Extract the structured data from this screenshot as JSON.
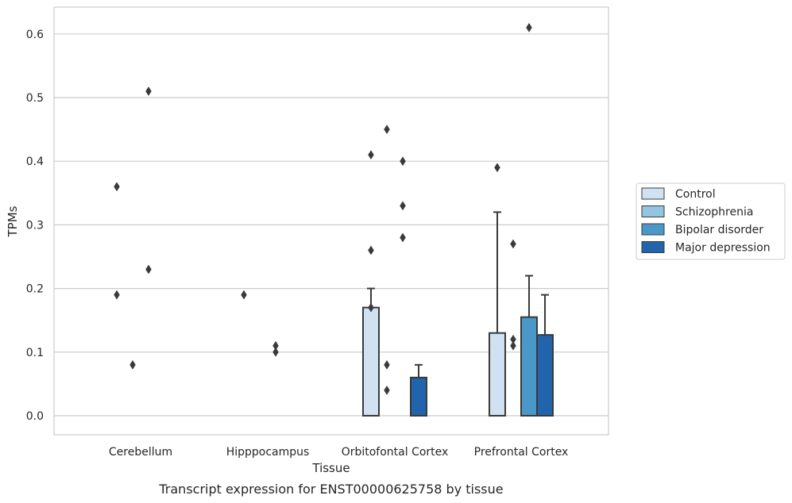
{
  "chart_data": {
    "type": "bar",
    "title": "",
    "caption": "Transcript expression for ENST00000625758 by tissue",
    "xlabel": "Tissue",
    "ylabel": "TPMs",
    "ylim": [
      -0.03,
      0.64
    ],
    "yticks": [
      0.0,
      0.1,
      0.2,
      0.3,
      0.4,
      0.5,
      0.6
    ],
    "ytick_labels": [
      "0.0",
      "0.1",
      "0.2",
      "0.3",
      "0.4",
      "0.5",
      "0.6"
    ],
    "grid": "horizontal",
    "legend_position": "right",
    "categories": [
      "Cerebellum",
      "Hipppocampus",
      "Orbitofontal Cortex",
      "Prefrontal Cortex"
    ],
    "series": [
      {
        "name": "Control",
        "color": "#d0e1f2",
        "values": [
          0.0,
          0.0,
          0.17,
          0.13
        ],
        "error_upper": [
          null,
          null,
          0.2,
          0.32
        ],
        "outliers": [
          [
            0.36,
            0.19
          ],
          [
            0.19
          ],
          [
            0.41,
            0.26,
            0.17
          ],
          [
            0.39
          ]
        ]
      },
      {
        "name": "Schizophrenia",
        "color": "#94c4df",
        "values": [
          0.0,
          0.0,
          0.0,
          0.0
        ],
        "error_upper": [
          null,
          null,
          null,
          null
        ],
        "outliers": [
          [
            0.08
          ],
          [],
          [
            0.45,
            0.08,
            0.04
          ],
          [
            0.27,
            0.12,
            0.11
          ]
        ]
      },
      {
        "name": "Bipolar disorder",
        "color": "#4a98c9",
        "values": [
          0.0,
          0.0,
          0.0,
          0.155
        ],
        "error_upper": [
          null,
          null,
          null,
          0.22
        ],
        "outliers": [
          [
            0.51,
            0.23
          ],
          [
            0.11,
            0.1
          ],
          [
            0.4,
            0.33,
            0.28
          ],
          [
            0.61
          ]
        ]
      },
      {
        "name": "Major depression",
        "color": "#2164ab",
        "values": [
          0.0,
          0.0,
          0.06,
          0.127
        ],
        "error_upper": [
          null,
          null,
          0.08,
          0.19
        ],
        "outliers": [
          [],
          [],
          [],
          []
        ]
      }
    ]
  }
}
